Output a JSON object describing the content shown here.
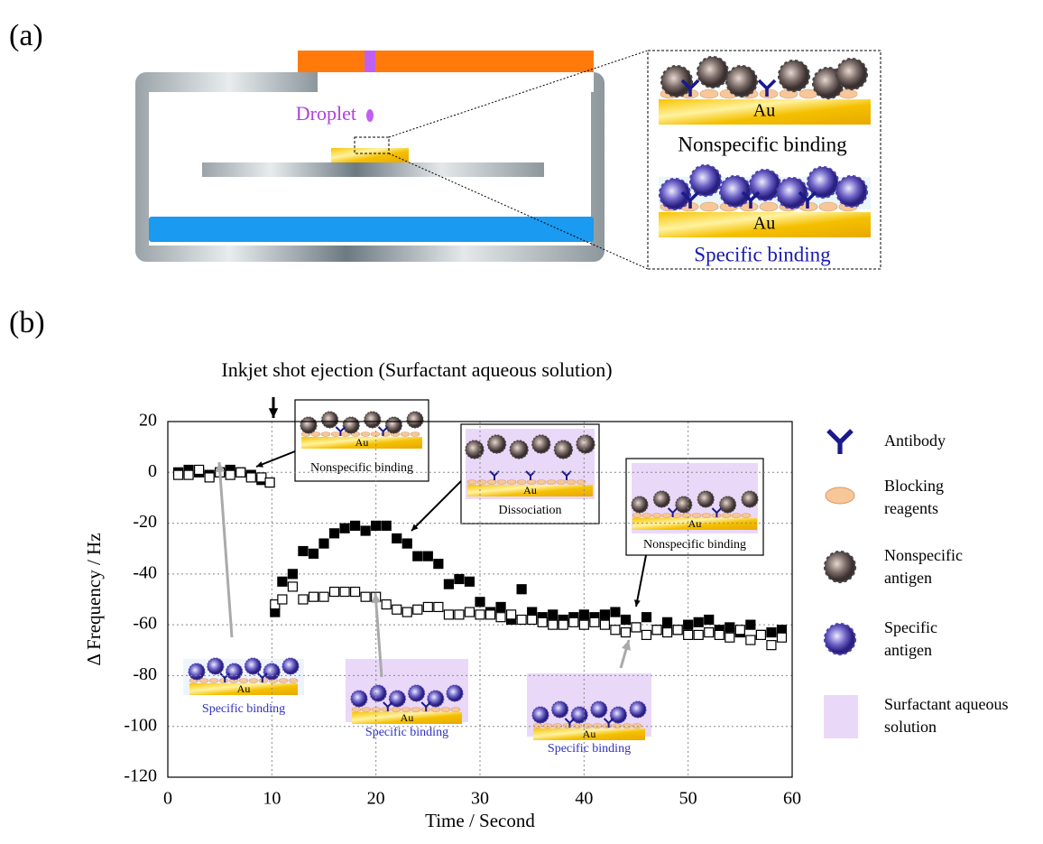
{
  "panel_a": {
    "label": "(a)",
    "droplet": "Droplet",
    "inset_au": [
      "Au",
      "Au"
    ],
    "inset_captions": [
      "Nonspecific binding",
      "Specific binding"
    ]
  },
  "chart_data": {
    "type": "scatter",
    "panel_label": "(b)",
    "annotation": "Inkjet shot ejection (Surfactant aqueous solution)",
    "xlabel": "Time / Second",
    "ylabel": "Δ Frequency / Hz",
    "xlim": [
      0,
      60
    ],
    "ylim": [
      -120,
      20
    ],
    "xticks": [
      0,
      10,
      20,
      30,
      40,
      50,
      60
    ],
    "yticks": [
      20,
      0,
      -20,
      -40,
      -60,
      -80,
      -100,
      -120
    ],
    "grid": true,
    "series": [
      {
        "marker": "filled",
        "color": "#000000",
        "x": [
          1,
          2,
          3,
          4,
          5,
          6,
          7,
          8,
          9,
          9.8,
          10.3,
          11,
          12,
          13,
          14,
          15,
          16,
          17,
          18,
          19,
          20,
          21,
          22,
          23,
          24,
          25,
          26,
          27,
          28,
          29,
          30,
          31,
          32,
          33,
          34,
          35,
          36,
          37,
          38,
          39,
          40,
          41,
          42,
          43,
          44,
          45,
          46,
          47,
          48,
          49,
          50,
          51,
          52,
          53,
          54,
          55,
          56,
          57,
          58,
          59
        ],
        "values": [
          0,
          1,
          0,
          -1,
          0,
          1,
          0,
          -1,
          -3,
          -4,
          -55,
          -43,
          -40,
          -31,
          -32,
          -28,
          -24,
          -22,
          -21,
          -23,
          -21,
          -21,
          -26,
          -28,
          -33,
          -33,
          -36,
          -44,
          -42,
          -43,
          -51,
          -55,
          -53,
          -58,
          -46,
          -55,
          -57,
          -56,
          -58,
          -57,
          -56,
          -57,
          -56,
          -55,
          -58,
          -61,
          -57,
          -62,
          -59,
          -62,
          -60,
          -59,
          -58,
          -62,
          -61,
          -63,
          -60,
          -64,
          -63,
          -62
        ]
      },
      {
        "marker": "open",
        "color": "#000000",
        "x": [
          1,
          2,
          3,
          4,
          5,
          6,
          7,
          8,
          9,
          9.8,
          10.3,
          11,
          12,
          13,
          14,
          15,
          16,
          17,
          18,
          19,
          20,
          21,
          22,
          23,
          24,
          25,
          26,
          27,
          28,
          29,
          30,
          31,
          32,
          33,
          34,
          35,
          36,
          37,
          38,
          39,
          40,
          41,
          42,
          43,
          44,
          45,
          46,
          47,
          48,
          49,
          50,
          51,
          52,
          53,
          54,
          55,
          56,
          57,
          58,
          59
        ],
        "values": [
          -1,
          -1,
          1,
          -2,
          0,
          -1,
          0,
          -2,
          -2,
          -4,
          -52,
          -50,
          -45,
          -50,
          -49,
          -49,
          -47,
          -47,
          -47,
          -49,
          -49,
          -52,
          -54,
          -55,
          -54,
          -53,
          -53,
          -56,
          -56,
          -55,
          -56,
          -56,
          -57,
          -56,
          -58,
          -58,
          -59,
          -60,
          -60,
          -59,
          -60,
          -59,
          -60,
          -62,
          -63,
          -61,
          -64,
          -62,
          -63,
          -62,
          -64,
          -64,
          -63,
          -64,
          -65,
          -62,
          -66,
          -64,
          -68,
          -65
        ]
      }
    ],
    "insets": [
      {
        "au": "Au",
        "caption": "Nonspecific binding"
      },
      {
        "au": "Au",
        "caption": "Dissociation"
      },
      {
        "au": "Au",
        "caption": "Nonspecific binding"
      },
      {
        "au": "Au",
        "caption": "Specific binding"
      },
      {
        "au": "Au",
        "caption": "Specific binding"
      },
      {
        "au": "Au",
        "caption": "Specific binding"
      }
    ],
    "legend": [
      {
        "lines": [
          "Antibody"
        ]
      },
      {
        "lines": [
          "Blocking",
          "reagents"
        ]
      },
      {
        "lines": [
          "Nonspecific",
          "antigen"
        ]
      },
      {
        "lines": [
          "Specific",
          "antigen"
        ]
      },
      {
        "lines": [
          "Surfactant aqueous",
          "solution"
        ]
      }
    ]
  }
}
